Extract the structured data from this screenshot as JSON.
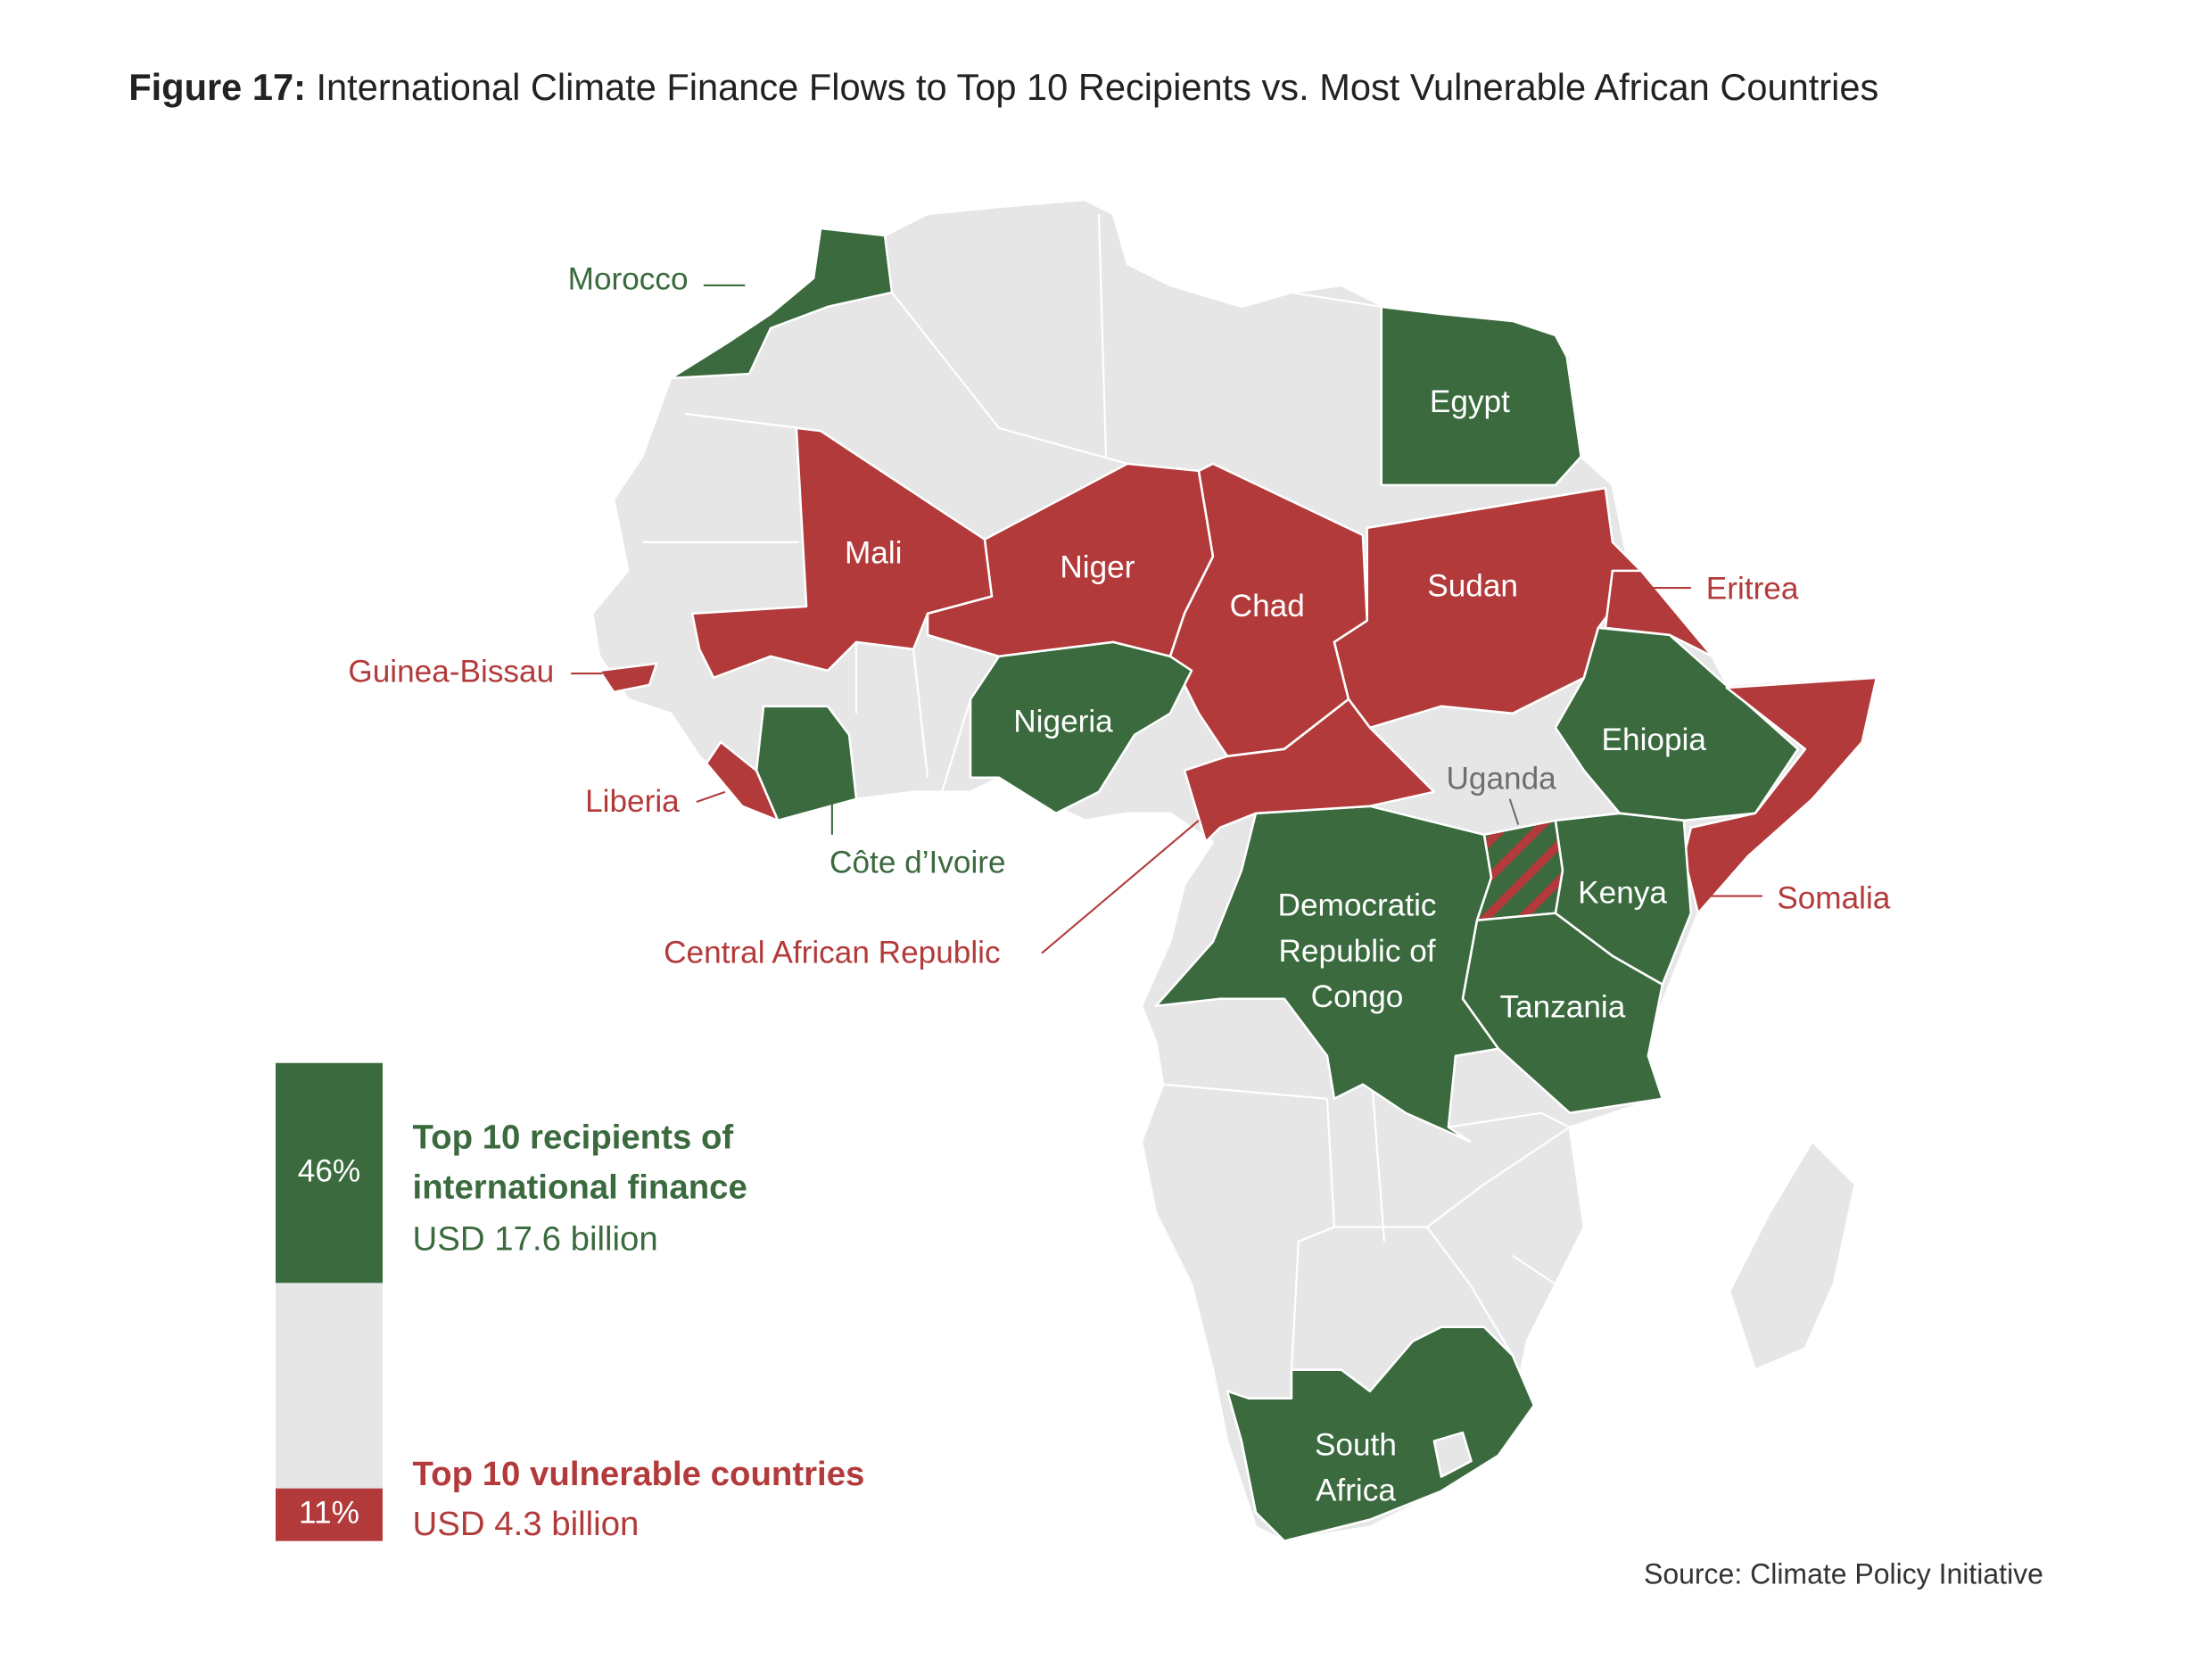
{
  "title": {
    "prefix": "Figure 17:",
    "text": "International Climate Finance Flows to Top 10 Recipients vs. Most Vulnerable African Countries"
  },
  "map": {
    "morocco": "Morocco",
    "egypt": "Egypt",
    "mali": "Mali",
    "niger": "Niger",
    "chad": "Chad",
    "sudan": "Sudan",
    "eritrea": "Eritrea",
    "guinea_bissau": "Guinea-Bissau",
    "nigeria": "Nigeria",
    "ethiopia": "Ehiopia",
    "uganda": "Uganda",
    "liberia": "Liberia",
    "cote_divoire": "Côte d’Ivoire",
    "kenya": "Kenya",
    "somalia": "Somalia",
    "drc": [
      "Democratic",
      "Republic of",
      "Congo"
    ],
    "car": "Central African Republic",
    "tanzania": "Tanzania",
    "south_africa": [
      "South",
      "Africa"
    ]
  },
  "legend": [
    {
      "share": 46,
      "share_label": "46%",
      "title": [
        "Top 10 recipients of",
        "international finance"
      ],
      "amount": "USD 17.6 billion",
      "color": "#3a6a3e"
    },
    {
      "share": 11,
      "share_label": "11%",
      "title": [
        "Top 10 vulnerable countries"
      ],
      "amount": "USD 4.3 billion",
      "color": "#b33a3a"
    }
  ],
  "source": "Source: Climate Policy Initiative"
}
